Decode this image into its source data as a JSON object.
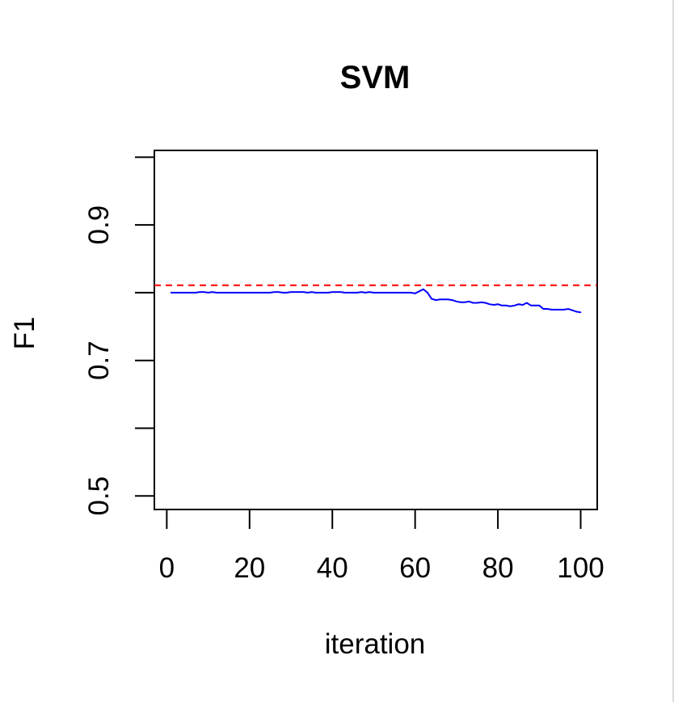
{
  "chart_data": {
    "type": "line",
    "title": "SVM",
    "xlabel": "iteration",
    "ylabel": "F1",
    "xlim": [
      -3,
      104
    ],
    "ylim": [
      0.48,
      1.01
    ],
    "x_ticks": [
      0,
      20,
      40,
      60,
      80,
      100
    ],
    "y_ticks": [
      0.5,
      0.6,
      0.7,
      0.8,
      0.9,
      1.0
    ],
    "y_tick_labels": [
      "0.5",
      "",
      "0.7",
      "",
      "0.9",
      ""
    ],
    "grid": false,
    "baseline": {
      "y": 0.811,
      "color": "#ff0000",
      "style": "dashed"
    },
    "series": [
      {
        "color": "#0000ff",
        "x": [
          1,
          2,
          3,
          4,
          5,
          6,
          7,
          8,
          9,
          10,
          11,
          12,
          13,
          14,
          15,
          16,
          17,
          18,
          19,
          20,
          21,
          22,
          23,
          24,
          25,
          26,
          27,
          28,
          29,
          30,
          31,
          32,
          33,
          34,
          35,
          36,
          37,
          38,
          39,
          40,
          41,
          42,
          43,
          44,
          45,
          46,
          47,
          48,
          49,
          50,
          51,
          52,
          53,
          54,
          55,
          56,
          57,
          58,
          59,
          60,
          61,
          62,
          63,
          64,
          65,
          66,
          67,
          68,
          69,
          70,
          71,
          72,
          73,
          74,
          75,
          76,
          77,
          78,
          79,
          80,
          81,
          82,
          83,
          84,
          85,
          86,
          87,
          88,
          89,
          90,
          91,
          92,
          93,
          94,
          95,
          96,
          97,
          98,
          99,
          100
        ],
        "values": [
          0.8,
          0.8,
          0.8,
          0.8,
          0.8,
          0.8,
          0.8,
          0.801,
          0.801,
          0.8,
          0.801,
          0.8,
          0.8,
          0.8,
          0.8,
          0.8,
          0.8,
          0.8,
          0.8,
          0.8,
          0.8,
          0.8,
          0.8,
          0.8,
          0.8,
          0.801,
          0.801,
          0.8,
          0.8,
          0.801,
          0.801,
          0.801,
          0.801,
          0.8,
          0.801,
          0.8,
          0.8,
          0.8,
          0.8,
          0.801,
          0.801,
          0.801,
          0.8,
          0.8,
          0.8,
          0.8,
          0.801,
          0.8,
          0.801,
          0.8,
          0.8,
          0.8,
          0.8,
          0.8,
          0.8,
          0.8,
          0.8,
          0.8,
          0.8,
          0.799,
          0.802,
          0.805,
          0.8,
          0.791,
          0.789,
          0.79,
          0.79,
          0.79,
          0.789,
          0.787,
          0.786,
          0.786,
          0.787,
          0.785,
          0.785,
          0.786,
          0.785,
          0.783,
          0.782,
          0.783,
          0.781,
          0.781,
          0.78,
          0.781,
          0.783,
          0.782,
          0.785,
          0.781,
          0.781,
          0.781,
          0.776,
          0.776,
          0.775,
          0.775,
          0.775,
          0.775,
          0.776,
          0.774,
          0.772,
          0.771
        ]
      }
    ]
  }
}
